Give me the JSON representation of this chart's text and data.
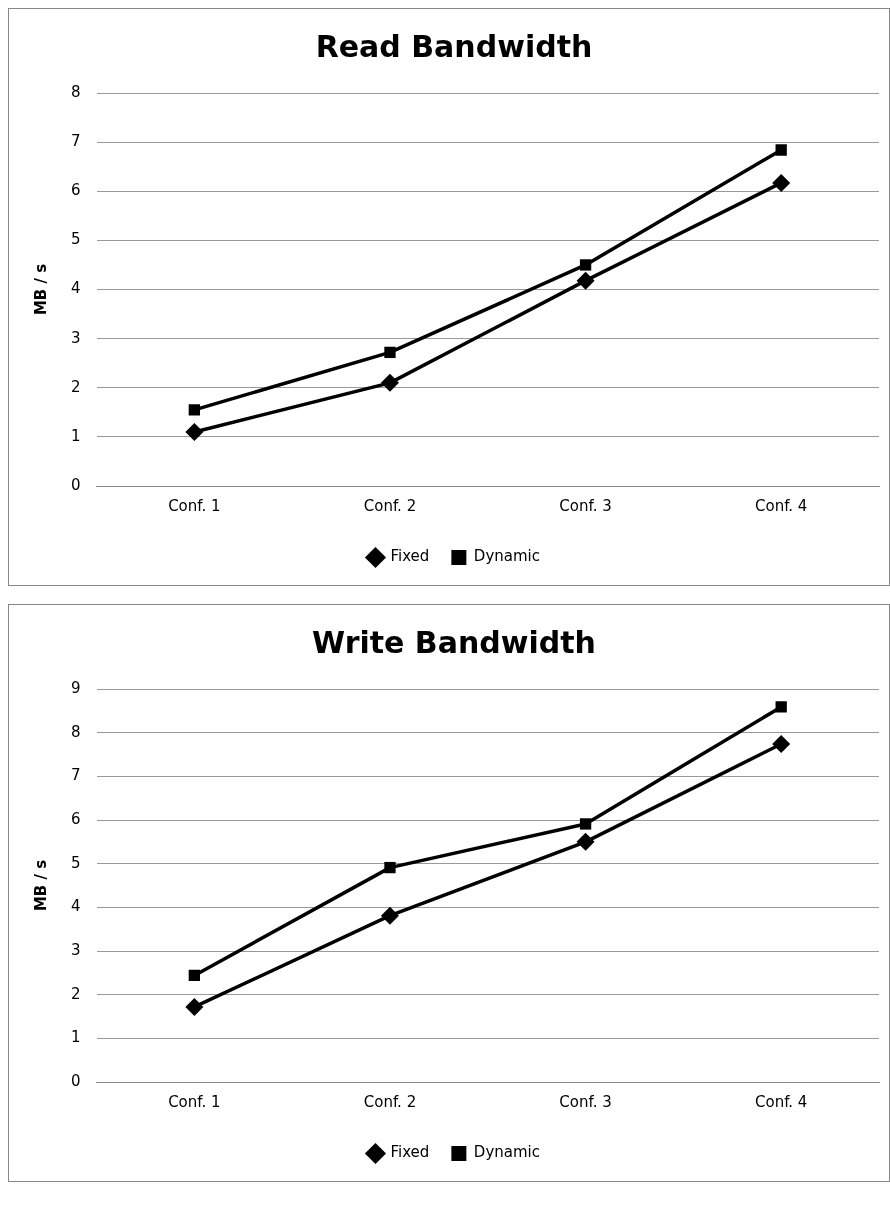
{
  "chart_data": [
    {
      "type": "line",
      "title": "Read Bandwidth",
      "ylabel": "MB / s",
      "categories": [
        "Conf. 1",
        "Conf. 2",
        "Conf. 3",
        "Conf. 4"
      ],
      "ylim": [
        0,
        8
      ],
      "yticks": [
        0,
        1,
        2,
        3,
        4,
        5,
        6,
        7,
        8
      ],
      "grid": "y",
      "legend": "bottom",
      "line_style": "solid",
      "series": [
        {
          "name": "Fixed",
          "color": "#000000",
          "marker": "diamond",
          "values": [
            1.1,
            2.1,
            4.18,
            6.17
          ]
        },
        {
          "name": "Dynamic",
          "color": "#000000",
          "marker": "square",
          "values": [
            1.55,
            2.72,
            4.5,
            6.84
          ]
        }
      ]
    },
    {
      "type": "line",
      "title": "Write Bandwidth",
      "ylabel": "MB / s",
      "categories": [
        "Conf. 1",
        "Conf. 2",
        "Conf. 3",
        "Conf. 4"
      ],
      "ylim": [
        0,
        9
      ],
      "yticks": [
        0,
        1,
        2,
        3,
        4,
        5,
        6,
        7,
        8,
        9
      ],
      "grid": "y",
      "legend": "bottom",
      "line_style": "solid",
      "series": [
        {
          "name": "Fixed",
          "color": "#000000",
          "marker": "diamond",
          "values": [
            1.72,
            3.81,
            5.5,
            7.74
          ]
        },
        {
          "name": "Dynamic",
          "color": "#000000",
          "marker": "square",
          "values": [
            2.44,
            4.91,
            5.91,
            8.59
          ]
        }
      ]
    }
  ]
}
